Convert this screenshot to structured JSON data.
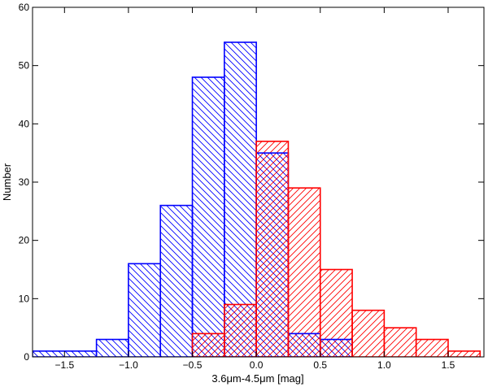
{
  "chart_data": {
    "type": "histogram",
    "xlabel": "3.6μm-4.5μm [mag]",
    "ylabel": "Number",
    "xlim": [
      -1.75,
      1.78
    ],
    "ylim": [
      0,
      60
    ],
    "xticks": [
      -1.5,
      -1.0,
      -0.5,
      0.0,
      0.5,
      1.0,
      1.5
    ],
    "xtick_labels": [
      "−1.5",
      "−1.0",
      "−0.5",
      "0.0",
      "0.5",
      "1.0",
      "1.5"
    ],
    "yticks": [
      0,
      10,
      20,
      30,
      40,
      50,
      60
    ],
    "ytick_labels": [
      "0",
      "10",
      "20",
      "30",
      "40",
      "50",
      "60"
    ],
    "bin_edges": [
      -1.75,
      -1.25,
      -1.0,
      -0.75,
      -0.5,
      -0.25,
      0.0,
      0.25,
      0.5,
      0.75,
      1.0,
      1.25,
      1.5,
      1.75
    ],
    "series": [
      {
        "color": "#0000ff",
        "hatch": "backslash",
        "bins": [
          {
            "x0": -1.75,
            "x1": -1.25,
            "count": 1
          },
          {
            "x0": -1.25,
            "x1": -1.0,
            "count": 3
          },
          {
            "x0": -1.0,
            "x1": -0.75,
            "count": 16
          },
          {
            "x0": -0.75,
            "x1": -0.5,
            "count": 26
          },
          {
            "x0": -0.5,
            "x1": -0.25,
            "count": 48
          },
          {
            "x0": -0.25,
            "x1": 0.0,
            "count": 54
          },
          {
            "x0": 0.0,
            "x1": 0.25,
            "count": 35
          },
          {
            "x0": 0.25,
            "x1": 0.5,
            "count": 4
          },
          {
            "x0": 0.5,
            "x1": 0.75,
            "count": 3
          }
        ]
      },
      {
        "color": "#ff0000",
        "hatch": "slash",
        "bins": [
          {
            "x0": -0.5,
            "x1": -0.25,
            "count": 4
          },
          {
            "x0": -0.25,
            "x1": 0.0,
            "count": 9
          },
          {
            "x0": 0.0,
            "x1": 0.25,
            "count": 37
          },
          {
            "x0": 0.25,
            "x1": 0.5,
            "count": 29
          },
          {
            "x0": 0.5,
            "x1": 0.75,
            "count": 15
          },
          {
            "x0": 0.75,
            "x1": 1.0,
            "count": 8
          },
          {
            "x0": 1.0,
            "x1": 1.25,
            "count": 5
          },
          {
            "x0": 1.25,
            "x1": 1.5,
            "count": 3
          },
          {
            "x0": 1.5,
            "x1": 1.75,
            "count": 1
          }
        ]
      }
    ]
  }
}
